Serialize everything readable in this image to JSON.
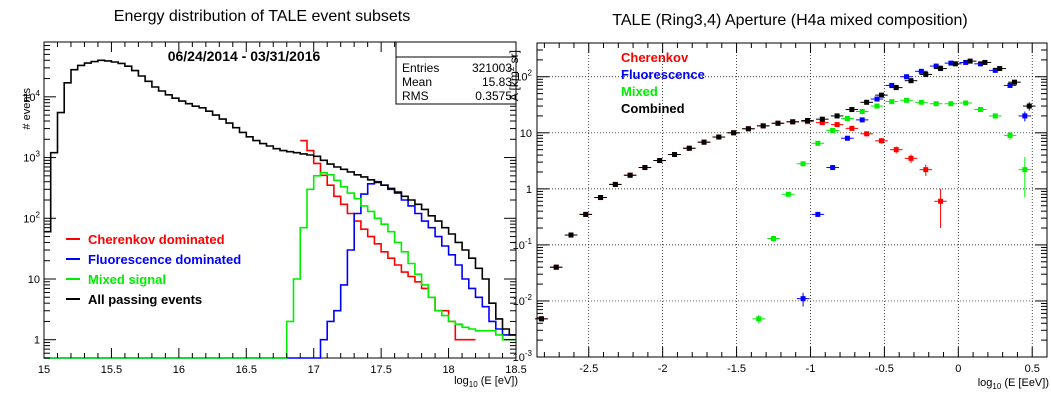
{
  "chart_data": [
    {
      "type": "histogram",
      "title": "Energy distribution of TALE event subsets",
      "annotation": "06/24/2014 - 03/31/2016",
      "xlabel_main": "log",
      "xlabel_sub": "10",
      "xlabel_rest": " (E [eV])",
      "ylabel": "# events",
      "xlim": [
        15,
        18.5
      ],
      "ylim": [
        0.5,
        80000
      ],
      "yscale": "log",
      "xticks": [
        "15",
        "15.5",
        "16",
        "16.5",
        "17",
        "17.5",
        "18",
        "18.5"
      ],
      "xtick_values": [
        15,
        15.5,
        16,
        16.5,
        17,
        17.5,
        18,
        18.5
      ],
      "yticks": [
        {
          "value": 1,
          "base": "1",
          "exp": ""
        },
        {
          "value": 10,
          "base": "10",
          "exp": ""
        },
        {
          "value": 100,
          "base": "10",
          "exp": "2"
        },
        {
          "value": 1000,
          "base": "10",
          "exp": "3"
        },
        {
          "value": 10000,
          "base": "10",
          "exp": "4"
        }
      ],
      "stats": [
        {
          "label": "Entries",
          "value": "321003"
        },
        {
          "label": "Mean",
          "value": "15.83"
        },
        {
          "label": "RMS",
          "value": "0.3575"
        }
      ],
      "bin_width": 0.05,
      "series": [
        {
          "name": "Cherenkov dominated",
          "color": "#ff0000",
          "x0": 16.9,
          "values": [
            1900,
            1300,
            800,
            510,
            350,
            230,
            170,
            120,
            90,
            66,
            50,
            38,
            28,
            22,
            17,
            13,
            11,
            9,
            7,
            5,
            3,
            3,
            2,
            1,
            1,
            1
          ]
        },
        {
          "name": "Fluorescence dominated",
          "color": "#0000ff",
          "x0": 15.0,
          "values": [
            0.5,
            0.5,
            0.5,
            0.5,
            0.5,
            0.5,
            0.5,
            0.5,
            0.5,
            0.5,
            0.5,
            0.5,
            0.5,
            0.5,
            0.5,
            0.5,
            0.5,
            0.5,
            0.5,
            0.5,
            0.5,
            0.5,
            0.5,
            0.5,
            0.5,
            0.5,
            0.5,
            0.5,
            0.5,
            0.5,
            0.5,
            0.5,
            0.5,
            0.5,
            0.5,
            0.5,
            0.5,
            0.5,
            0.5,
            0.5,
            0.5,
            1,
            2,
            3,
            8,
            30,
            120,
            250,
            370,
            400,
            350,
            300,
            260,
            200,
            160,
            120,
            90,
            70,
            50,
            35,
            25,
            17,
            10,
            7,
            5,
            3.5,
            2,
            1.5,
            1.2,
            1.2
          ]
        },
        {
          "name": "Mixed signal",
          "color": "#00ee00",
          "x0": 15.0,
          "values": [
            0.5,
            0.5,
            0.5,
            0.5,
            0.5,
            0.5,
            0.5,
            0.5,
            0.5,
            0.5,
            0.5,
            0.5,
            0.5,
            0.5,
            0.5,
            0.5,
            0.5,
            0.5,
            0.5,
            0.5,
            0.5,
            0.5,
            0.5,
            0.5,
            0.5,
            0.5,
            0.5,
            0.5,
            0.5,
            0.5,
            0.5,
            0.5,
            0.5,
            0.5,
            0.5,
            0.5,
            2,
            10,
            70,
            300,
            500,
            560,
            520,
            420,
            330,
            260,
            210,
            160,
            130,
            100,
            80,
            60,
            40,
            28,
            18,
            12,
            8,
            5,
            3,
            2.5,
            2,
            1.8,
            1.6,
            1.5,
            1.4,
            1.4,
            1.4,
            1.2,
            1,
            1
          ]
        },
        {
          "name": "All passing events",
          "color": "#000000",
          "x0": 15.0,
          "values": [
            60,
            1200,
            5500,
            17000,
            28000,
            33000,
            36000,
            38000,
            40000,
            39000,
            37500,
            35500,
            32000,
            27000,
            22000,
            18000,
            14500,
            12500,
            10800,
            9500,
            8500,
            7700,
            7000,
            6600,
            5800,
            5000,
            4300,
            3700,
            3100,
            2600,
            2200,
            1900,
            1700,
            1550,
            1400,
            1300,
            1250,
            1200,
            1150,
            1100,
            1050,
            900,
            780,
            700,
            640,
            580,
            520,
            480,
            430,
            390,
            350,
            310,
            270,
            230,
            200,
            170,
            140,
            110,
            90,
            70,
            55,
            40,
            30,
            22,
            15,
            10,
            4,
            2.2,
            1.5,
            1.2
          ]
        }
      ]
    },
    {
      "type": "scatter",
      "title": "TALE (Ring3,4) Aperture (H4a mixed composition)",
      "xlabel_main": "log",
      "xlabel_sub": "10",
      "xlabel_rest": " (E [EeV])",
      "ylabel_main": "A [km",
      "ylabel_sup": "2",
      "ylabel_rest": " sr]",
      "xlim": [
        -2.85,
        0.6
      ],
      "ylim": [
        0.001,
        400
      ],
      "yscale": "log",
      "grid": true,
      "legend": "top-left",
      "xticks": [
        "-2.5",
        "-2",
        "-1.5",
        "-1",
        "-0.5",
        "0",
        "0.5"
      ],
      "xtick_values": [
        -2.5,
        -2,
        -1.5,
        -1,
        -0.5,
        0,
        0.5
      ],
      "yticks": [
        {
          "value": 0.001,
          "base": "10",
          "exp": "-3"
        },
        {
          "value": 0.01,
          "base": "10",
          "exp": "-2"
        },
        {
          "value": 0.1,
          "base": "10",
          "exp": "-1"
        },
        {
          "value": 1,
          "base": "1",
          "exp": ""
        },
        {
          "value": 10,
          "base": "10",
          "exp": ""
        },
        {
          "value": 100,
          "base": "10",
          "exp": "2"
        }
      ],
      "series": [
        {
          "name": "Cherenkov",
          "color": "#ff0000",
          "x": [
            -2.82,
            -2.72,
            -2.62,
            -2.52,
            -2.42,
            -2.32,
            -2.22,
            -2.12,
            -2.02,
            -1.92,
            -1.82,
            -1.72,
            -1.62,
            -1.52,
            -1.42,
            -1.32,
            -1.22,
            -1.12,
            -1.02,
            -0.92,
            -0.82,
            -0.72,
            -0.62,
            -0.52,
            -0.42,
            -0.32,
            -0.22,
            -0.12
          ],
          "y": [
            0.0048,
            0.04,
            0.15,
            0.35,
            0.7,
            1.2,
            1.75,
            2.4,
            3.2,
            4.1,
            5.3,
            6.8,
            8.4,
            10,
            11.8,
            13.3,
            14.8,
            15.7,
            15.8,
            15.2,
            14,
            12,
            9.6,
            7.2,
            5,
            3.5,
            2.2,
            0.6
          ],
          "err": [
            0.0004,
            0.003,
            0.01,
            0.02,
            0.04,
            0.05,
            0.07,
            0.08,
            0.1,
            0.12,
            0.15,
            0.2,
            0.25,
            0.3,
            0.4,
            0.5,
            0.6,
            0.7,
            0.8,
            0.9,
            0.9,
            0.9,
            0.9,
            0.8,
            0.7,
            0.6,
            0.5,
            0.4
          ]
        },
        {
          "name": "Fluorescence",
          "color": "#0000ff",
          "x": [
            -1.05,
            -0.95,
            -0.85,
            -0.75,
            -0.65,
            -0.55,
            -0.45,
            -0.35,
            -0.25,
            -0.15,
            -0.05,
            0.05,
            0.15,
            0.25,
            0.35,
            0.45
          ],
          "y": [
            0.011,
            0.35,
            2.4,
            8,
            17,
            40,
            70,
            100,
            125,
            155,
            175,
            180,
            170,
            130,
            70,
            20
          ],
          "err": [
            0.003,
            0.02,
            0.15,
            0.4,
            0.8,
            2,
            3,
            4,
            5,
            6,
            8,
            8,
            8,
            7,
            5,
            4
          ]
        },
        {
          "name": "Mixed",
          "color": "#00ee00",
          "x": [
            -1.35,
            -1.25,
            -1.15,
            -1.05,
            -0.95,
            -0.85,
            -0.75,
            -0.65,
            -0.55,
            -0.45,
            -0.35,
            -0.25,
            -0.15,
            -0.05,
            0.05,
            0.15,
            0.25,
            0.35,
            0.45
          ],
          "y": [
            0.0048,
            0.13,
            0.8,
            2.8,
            6.5,
            11,
            18,
            24,
            30,
            36,
            38,
            35,
            33,
            33,
            34,
            26,
            20,
            9,
            2.2
          ],
          "err": [
            0.0008,
            0.015,
            0.05,
            0.15,
            0.3,
            0.5,
            0.8,
            1,
            1.2,
            1.5,
            1.6,
            1.6,
            1.6,
            1.6,
            1.8,
            1.8,
            1.8,
            1.5,
            1.5
          ]
        },
        {
          "name": "Combined",
          "color": "#000000",
          "x": [
            -2.82,
            -2.72,
            -2.62,
            -2.52,
            -2.42,
            -2.32,
            -2.22,
            -2.12,
            -2.02,
            -1.92,
            -1.82,
            -1.72,
            -1.62,
            -1.52,
            -1.42,
            -1.32,
            -1.22,
            -1.12,
            -1.02,
            -0.92,
            -0.82,
            -0.72,
            -0.62,
            -0.52,
            -0.42,
            -0.32,
            -0.22,
            -0.12,
            -0.02,
            0.08,
            0.18,
            0.28,
            0.38,
            0.48
          ],
          "y": [
            0.0048,
            0.04,
            0.15,
            0.35,
            0.7,
            1.2,
            1.75,
            2.4,
            3.2,
            4.1,
            5.3,
            6.8,
            8.4,
            10,
            11.8,
            13.3,
            14.8,
            15.7,
            16.6,
            17.5,
            20,
            26,
            35,
            47,
            64,
            85,
            110,
            140,
            170,
            190,
            180,
            140,
            80,
            30
          ],
          "err": [
            0.0004,
            0.003,
            0.01,
            0.02,
            0.04,
            0.05,
            0.07,
            0.08,
            0.1,
            0.12,
            0.15,
            0.2,
            0.25,
            0.3,
            0.4,
            0.5,
            0.6,
            0.7,
            0.8,
            0.9,
            1,
            1.2,
            1.5,
            2,
            2.5,
            3,
            4,
            5,
            6,
            7,
            7,
            7,
            6,
            5
          ]
        }
      ]
    }
  ]
}
